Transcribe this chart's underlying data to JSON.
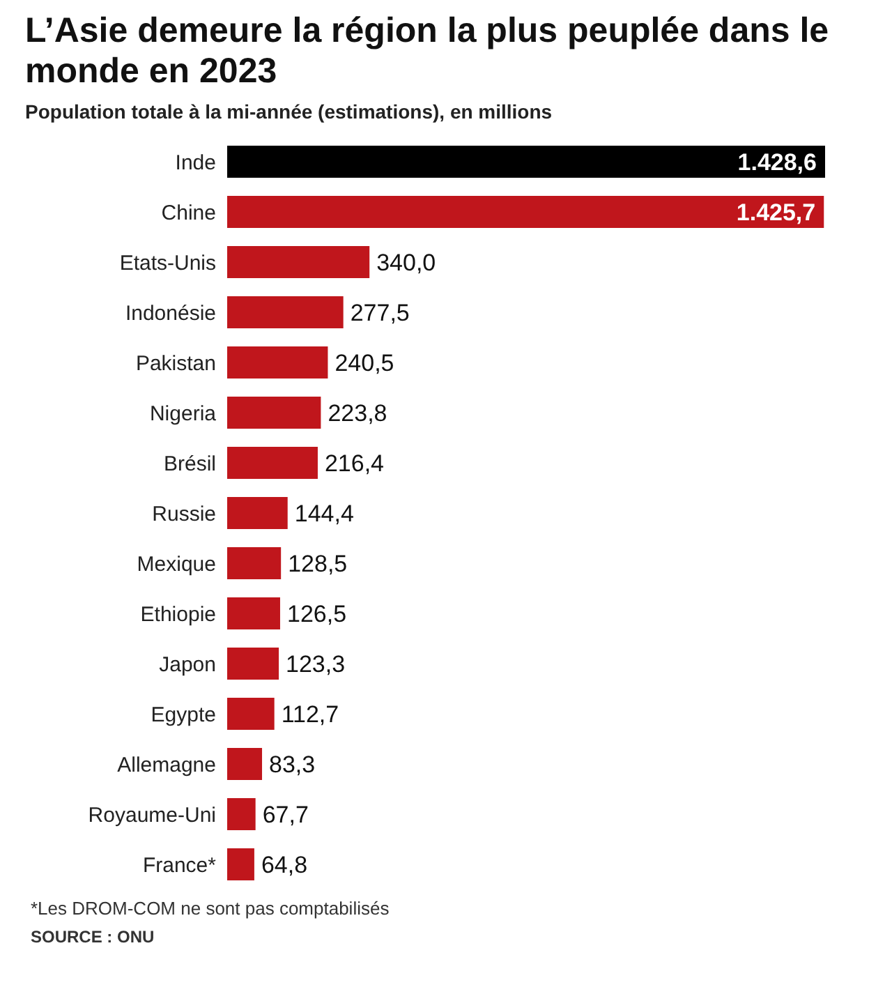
{
  "chart_data": {
    "type": "bar",
    "orientation": "horizontal",
    "title": "L’Asie demeure la région la plus peuplée dans le monde en 2023",
    "subtitle": "Population totale à la mi-année (estimations), en millions",
    "categories": [
      "Inde",
      "Chine",
      "Etats-Unis",
      "Indonésie",
      "Pakistan",
      "Nigeria",
      "Brésil",
      "Russie",
      "Mexique",
      "Ethiopie",
      "Japon",
      "Egypte",
      "Allemagne",
      "Royaume-Uni",
      "France*"
    ],
    "values": [
      1428.6,
      1425.7,
      340.0,
      277.5,
      240.5,
      223.8,
      216.4,
      144.4,
      128.5,
      126.5,
      123.3,
      112.7,
      83.3,
      67.7,
      64.8
    ],
    "value_labels": [
      "1.428,6",
      "1.425,7",
      "340,0",
      "277,5",
      "240,5",
      "223,8",
      "216,4",
      "144,4",
      "128,5",
      "126,5",
      "123,3",
      "112,7",
      "83,3",
      "67,7",
      "64,8"
    ],
    "colors": [
      "#000000",
      "#c0161c",
      "#c0161c",
      "#c0161c",
      "#c0161c",
      "#c0161c",
      "#c0161c",
      "#c0161c",
      "#c0161c",
      "#c0161c",
      "#c0161c",
      "#c0161c",
      "#c0161c",
      "#c0161c",
      "#c0161c"
    ],
    "legend": false,
    "grid": false,
    "annotations": [
      "*Les DROM-COM ne sont pas comptabilisés",
      "SOURCE : ONU"
    ]
  }
}
